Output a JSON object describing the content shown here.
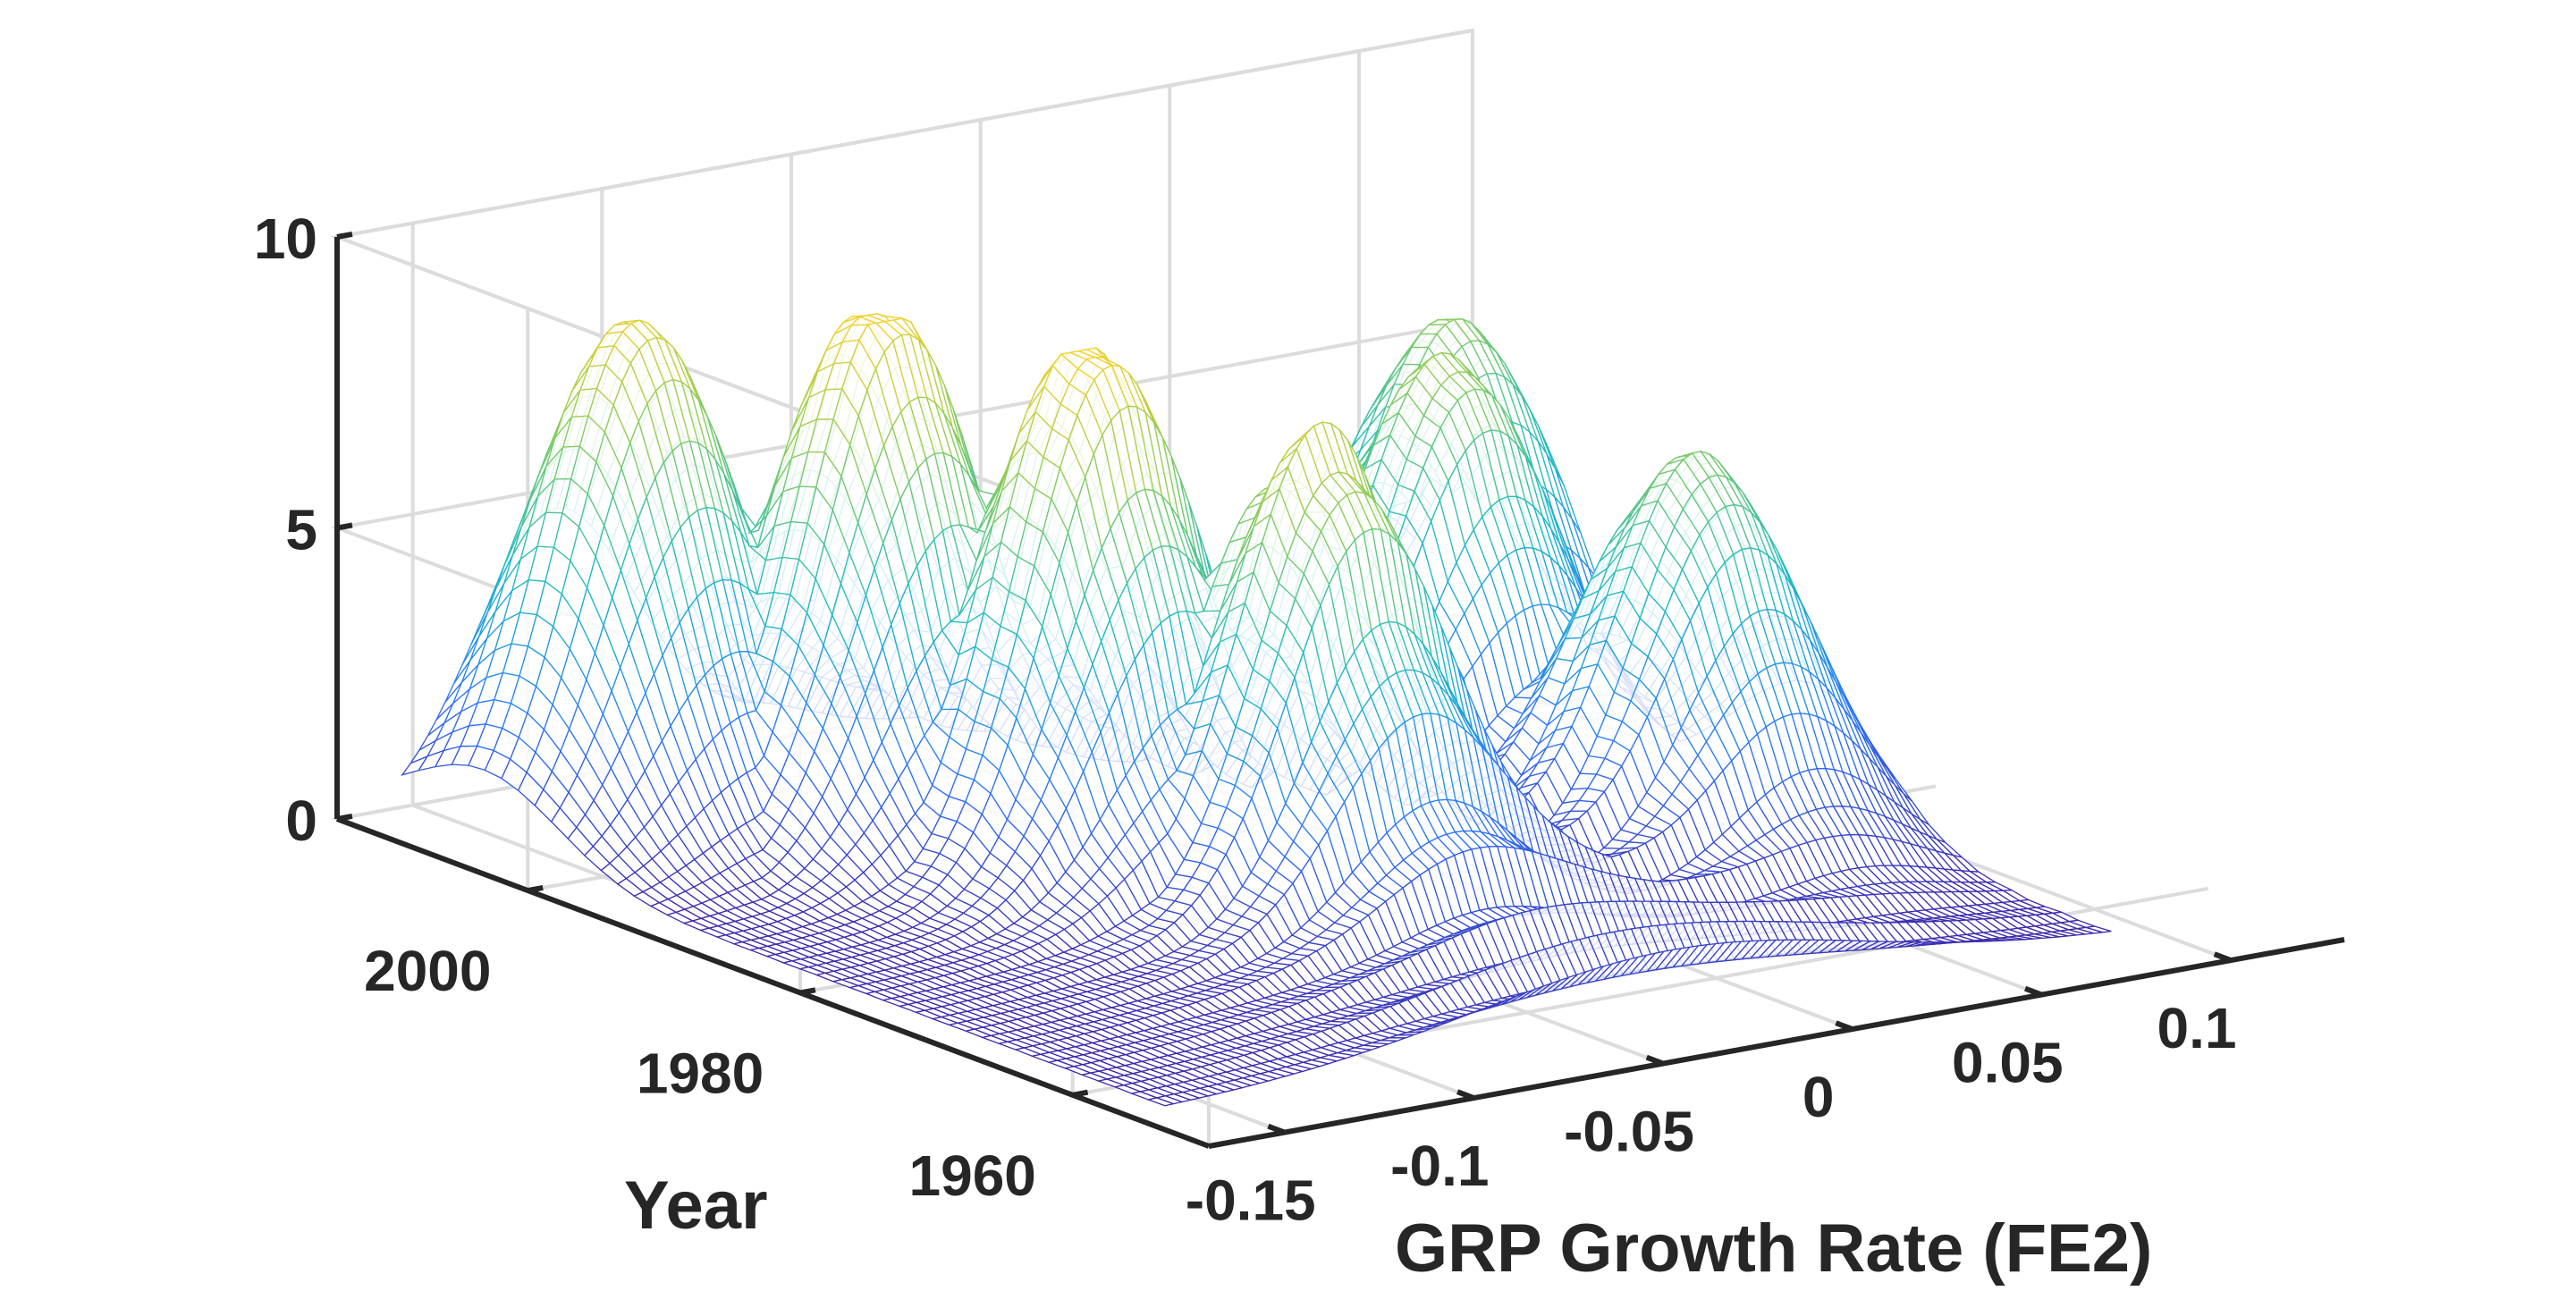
{
  "chart_data": {
    "type": "surface-3d",
    "title": "",
    "xlabel": "GRP Growth Rate (FE2)",
    "ylabel": "Year",
    "zlabel": "",
    "xlim": [
      -0.17,
      0.13
    ],
    "ylim": [
      1950,
      2014
    ],
    "zlim": [
      0,
      10
    ],
    "xticks": [
      -0.15,
      -0.1,
      -0.05,
      0,
      0.05,
      0.1
    ],
    "xtick_labels": [
      "-0.15",
      "-0.1",
      "-0.05",
      "0",
      "0.05",
      "0.1"
    ],
    "yticks": [
      1960,
      1980,
      2000
    ],
    "ytick_labels": [
      "1960",
      "1980",
      "2000"
    ],
    "zticks": [
      0,
      5,
      10
    ],
    "ztick_labels": [
      "0",
      "5",
      "10"
    ],
    "grid": true,
    "colormap": "parula",
    "colors": {
      "low": "#3e26a8",
      "mid": "#1dbbc6",
      "high": "#f9d12a",
      "axis": "#262626",
      "grid": "#dcdcdc"
    },
    "peaks": [
      {
        "x": -0.12,
        "year": 2006,
        "height": 8.5
      },
      {
        "x": -0.085,
        "year": 1998,
        "height": 8.8
      },
      {
        "x": -0.065,
        "year": 1988,
        "height": 8.6
      },
      {
        "x": -0.04,
        "year": 1978,
        "height": 7.4
      },
      {
        "x": 0.045,
        "year": 1992,
        "height": 7.0
      },
      {
        "x": 0.06,
        "year": 1978,
        "height": 6.5
      },
      {
        "x": 0.075,
        "year": 2000,
        "height": 6.8
      }
    ],
    "surface_range": {
      "x": [
        -0.16,
        0.09
      ],
      "year": [
        1956,
        2012
      ],
      "z_min": 0.0,
      "z_max": 9.0
    }
  }
}
